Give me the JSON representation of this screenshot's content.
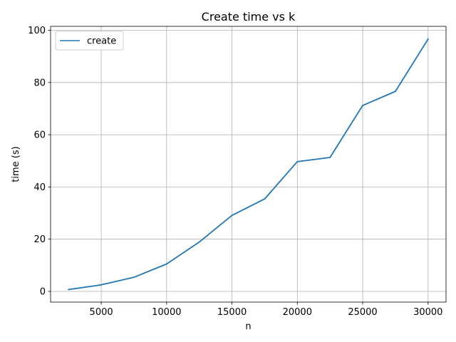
{
  "chart_data": {
    "type": "line",
    "title": "Create time vs k",
    "xlabel": "n",
    "ylabel": "time (s)",
    "xlim": [
      1125,
      31375
    ],
    "ylim": [
      -4.1,
      101.5
    ],
    "xticks": [
      5000,
      10000,
      15000,
      20000,
      25000,
      30000
    ],
    "yticks": [
      0,
      20,
      40,
      60,
      80,
      100
    ],
    "grid": true,
    "legend_position": "top-left",
    "series": [
      {
        "name": "create",
        "color": "#1f77b4",
        "x": [
          2500,
          5000,
          7500,
          10000,
          12500,
          15000,
          17500,
          20000,
          22500,
          25000,
          27500,
          30000
        ],
        "y": [
          0.7,
          2.5,
          5.4,
          10.5,
          18.9,
          29.1,
          35.4,
          49.7,
          51.3,
          71.2,
          76.6,
          96.6
        ]
      }
    ]
  }
}
